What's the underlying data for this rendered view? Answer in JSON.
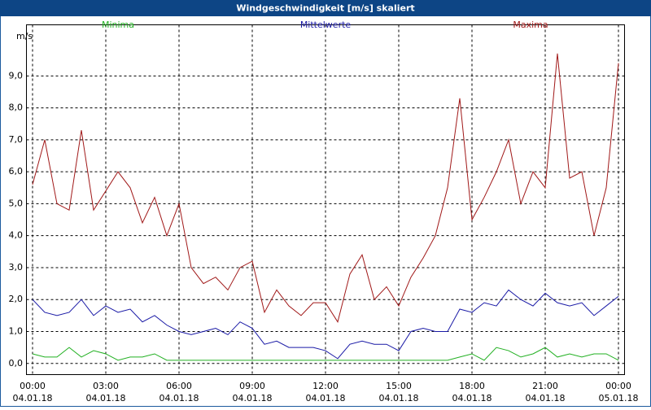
{
  "chart_data": {
    "type": "line",
    "title": "Windgeschwindigkeit [m/s] skaliert",
    "y_label": "m/s",
    "x": [
      0,
      0.5,
      1,
      1.5,
      2,
      2.5,
      3,
      3.5,
      4,
      4.5,
      5,
      5.5,
      6,
      6.5,
      7,
      7.5,
      8,
      8.5,
      9,
      9.5,
      10,
      10.5,
      11,
      11.5,
      12,
      12.5,
      13,
      13.5,
      14,
      14.5,
      15,
      15.5,
      16,
      16.5,
      17,
      17.5,
      18,
      18.5,
      19,
      19.5,
      20,
      20.5,
      21,
      21.5,
      22,
      22.5,
      23,
      23.5,
      24
    ],
    "series": [
      {
        "name": "Minima",
        "color": "#22b022",
        "values": [
          0.3,
          0.2,
          0.2,
          0.5,
          0.2,
          0.4,
          0.3,
          0.1,
          0.2,
          0.2,
          0.3,
          0.1,
          0.1,
          0.1,
          0.1,
          0.1,
          0.1,
          0.1,
          0.1,
          0.1,
          0.1,
          0.1,
          0.1,
          0.1,
          0.1,
          0.1,
          0.1,
          0.1,
          0.1,
          0.1,
          0.1,
          0.1,
          0.1,
          0.1,
          0.1,
          0.2,
          0.3,
          0.1,
          0.5,
          0.4,
          0.2,
          0.3,
          0.5,
          0.2,
          0.3,
          0.2,
          0.3,
          0.3,
          0.1
        ]
      },
      {
        "name": "Mittelwerte",
        "color": "#1a1aa6",
        "values": [
          2.0,
          1.6,
          1.5,
          1.6,
          2.0,
          1.5,
          1.8,
          1.6,
          1.7,
          1.3,
          1.5,
          1.2,
          1.0,
          0.9,
          1.0,
          1.1,
          0.9,
          1.3,
          1.1,
          0.6,
          0.7,
          0.5,
          0.5,
          0.5,
          0.4,
          0.15,
          0.6,
          0.7,
          0.6,
          0.6,
          0.4,
          1.0,
          1.1,
          1.0,
          1.0,
          1.7,
          1.6,
          1.9,
          1.8,
          2.3,
          2.0,
          1.8,
          2.2,
          1.9,
          1.8,
          1.9,
          1.5,
          1.8,
          2.1
        ]
      },
      {
        "name": "Maxima",
        "color": "#a01818",
        "values": [
          5.6,
          7.0,
          5.0,
          4.8,
          7.3,
          4.8,
          5.4,
          6.0,
          5.5,
          4.4,
          5.2,
          4.0,
          5.0,
          3.0,
          2.5,
          2.7,
          2.3,
          3.0,
          3.2,
          1.6,
          2.3,
          1.8,
          1.5,
          1.9,
          1.9,
          1.3,
          2.8,
          3.4,
          2.0,
          2.4,
          1.8,
          2.7,
          3.3,
          4.0,
          5.5,
          8.3,
          4.5,
          5.2,
          6.0,
          7.0,
          5.0,
          6.0,
          5.5,
          9.7,
          5.8,
          6.0,
          4.0,
          5.5,
          9.4
        ]
      }
    ],
    "xlim": [
      -0.25,
      24.25
    ],
    "xticks": [
      {
        "value": 0,
        "label": "00:00",
        "date": "04.01.18"
      },
      {
        "value": 3,
        "label": "03:00",
        "date": "04.01.18"
      },
      {
        "value": 6,
        "label": "06:00",
        "date": "04.01.18"
      },
      {
        "value": 9,
        "label": "09:00",
        "date": "04.01.18"
      },
      {
        "value": 12,
        "label": "12:00",
        "date": "04.01.18"
      },
      {
        "value": 15,
        "label": "15:00",
        "date": "04.01.18"
      },
      {
        "value": 18,
        "label": "18:00",
        "date": "04.01.18"
      },
      {
        "value": 21,
        "label": "21:00",
        "date": "04.01.18"
      },
      {
        "value": 24,
        "label": "00:00",
        "date": "05.01.18"
      }
    ],
    "ylim": [
      -0.35,
      10.6
    ],
    "yticks": [
      {
        "value": 0,
        "label": "0,0"
      },
      {
        "value": 1,
        "label": "1,0"
      },
      {
        "value": 2,
        "label": "2,0"
      },
      {
        "value": 3,
        "label": "3,0"
      },
      {
        "value": 4,
        "label": "4,0"
      },
      {
        "value": 5,
        "label": "5,0"
      },
      {
        "value": 6,
        "label": "6,0"
      },
      {
        "value": 7,
        "label": "7,0"
      },
      {
        "value": 8,
        "label": "8,0"
      },
      {
        "value": 9,
        "label": "9,0"
      }
    ],
    "grid": true
  }
}
